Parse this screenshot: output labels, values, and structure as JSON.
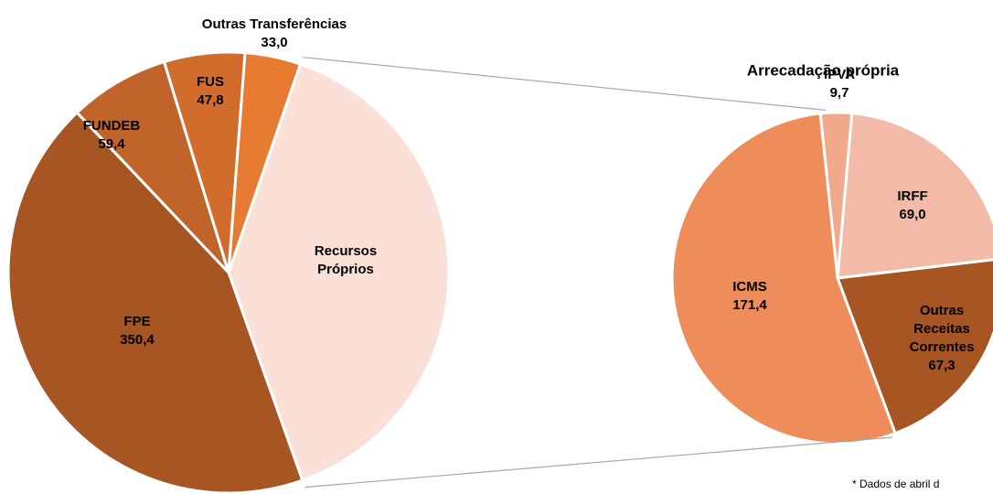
{
  "chart_data": [
    {
      "type": "pie",
      "categories": [
        "Recursos Próprios",
        "FPE",
        "FUNDEB",
        "FUS",
        "Outras Transferências"
      ],
      "values": [
        317.4,
        350.4,
        59.4,
        47.8,
        33.0
      ],
      "value_labels": [
        null,
        "350,4",
        "59,4",
        "47,8",
        "33,0"
      ],
      "colors": [
        "#fae0d6",
        "#a65523",
        "#c0642b",
        "#d16c2d",
        "#e77b31"
      ]
    },
    {
      "type": "pie",
      "title": "Arrecadação própria",
      "categories": [
        "IPVA",
        "IRFF",
        "Outras Receitas Correntes",
        "ICMS"
      ],
      "values": [
        9.7,
        69.0,
        67.3,
        171.4
      ],
      "value_labels": [
        "9,7",
        "69,0",
        "67,3",
        "171,4"
      ],
      "colors": [
        "#f0a98a",
        "#f3bba7",
        "#a65523",
        "#ee8c5a"
      ]
    }
  ],
  "note": "* Dados de abril d"
}
